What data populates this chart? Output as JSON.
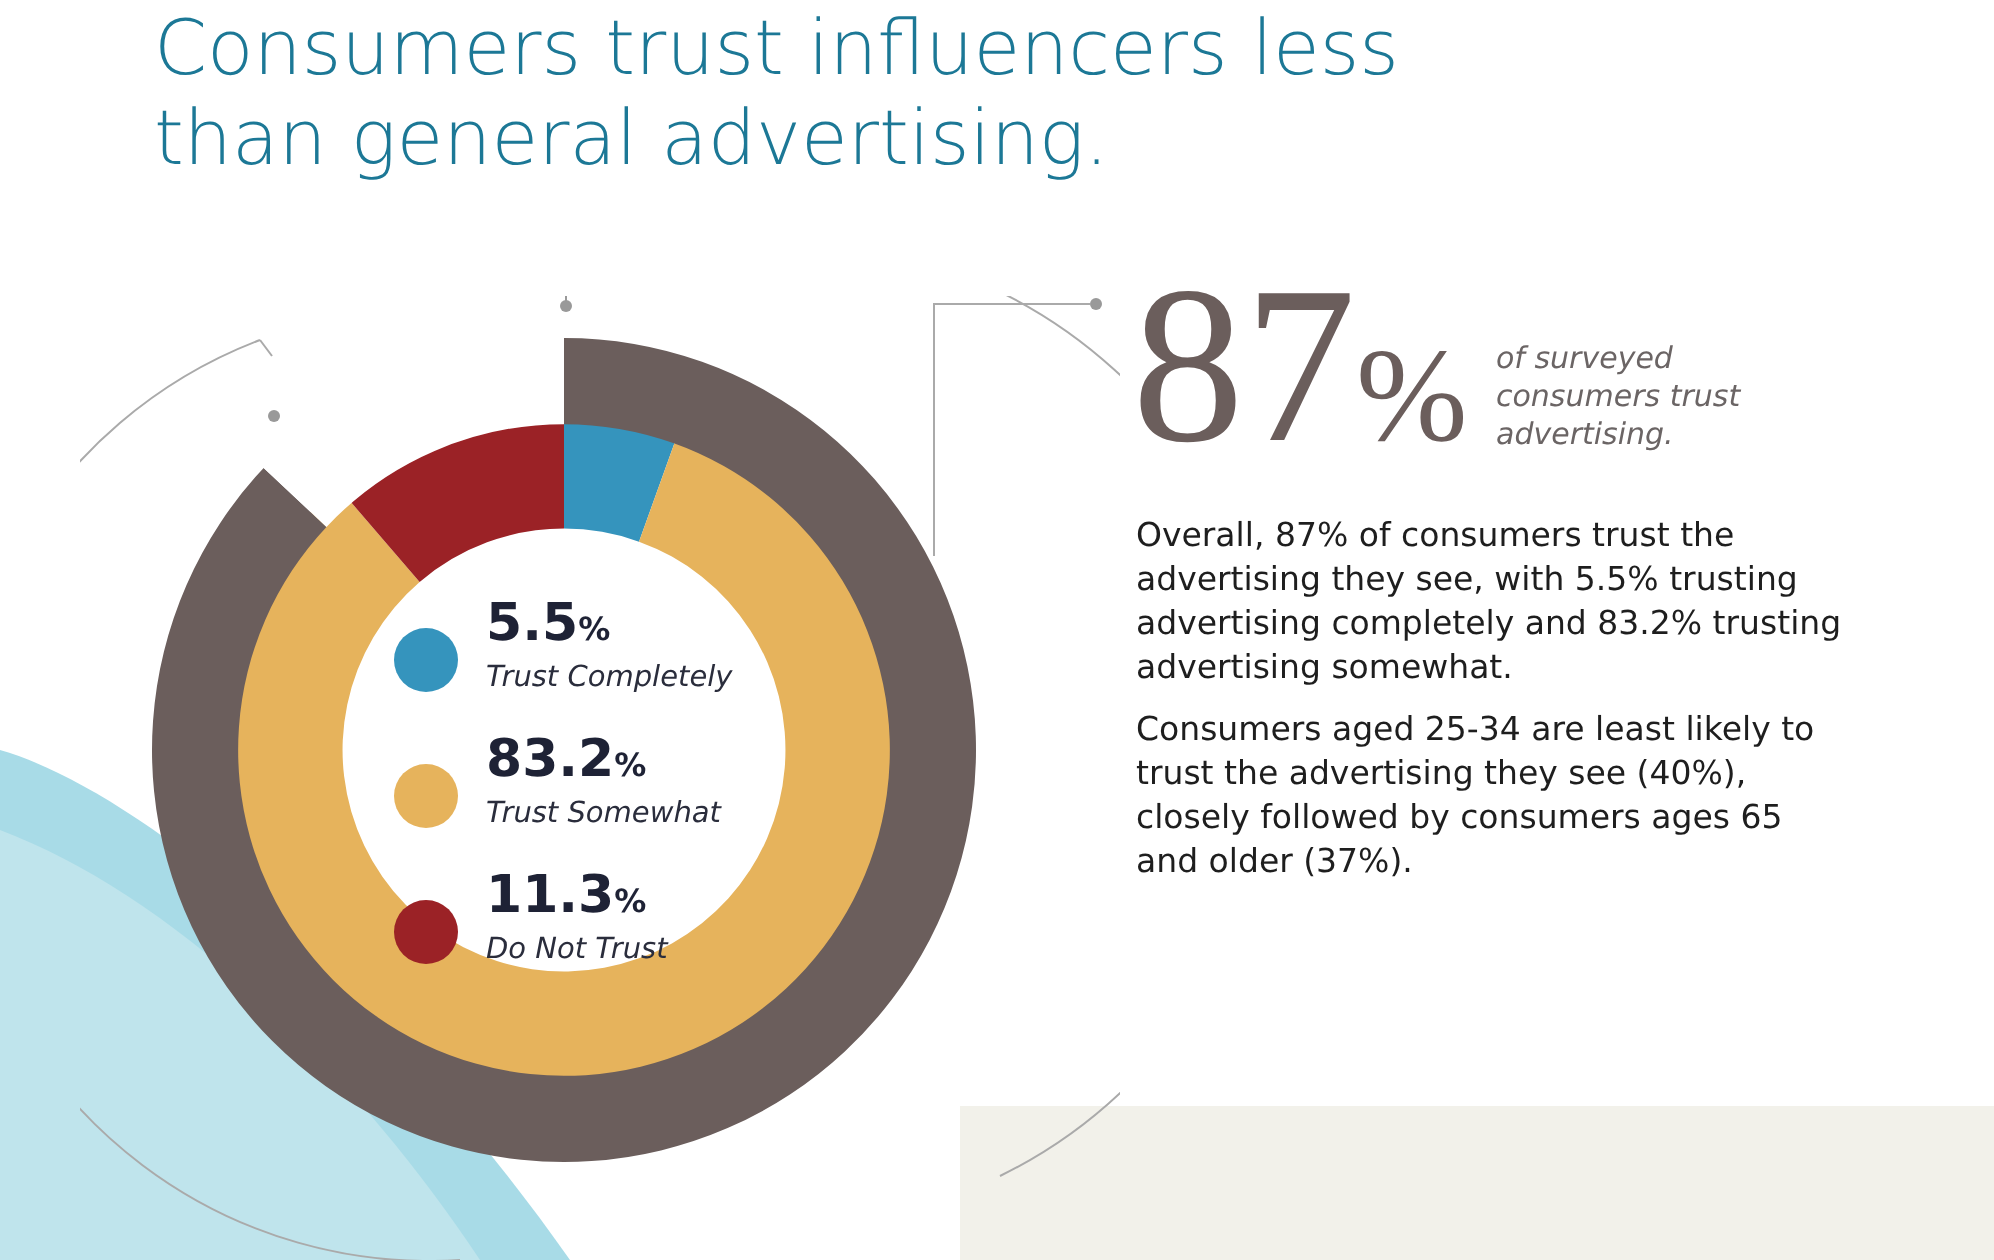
{
  "chart_data": [
    {
      "type": "donut",
      "title": "Consumers trust influencers less than general advertising.",
      "categories": [
        "Trust Completely",
        "Trust Somewhat",
        "Do Not Trust"
      ],
      "values": [
        5.5,
        83.2,
        11.3
      ],
      "colors": [
        "#3594bd",
        "#e6b35c",
        "#9b2226"
      ],
      "value_labels": [
        "5.5%",
        "83.2%",
        "11.3%"
      ],
      "legend": "center"
    },
    {
      "type": "donut",
      "categories": [
        null,
        null
      ],
      "values": [
        87,
        13
      ],
      "colors": [
        "#6b5e5c",
        "#ffffff"
      ],
      "value_labels": [
        "87%",
        null
      ],
      "annotations": [
        "of surveyed consumers trust advertising.",
        "Overall, 87% of consumers trust the advertising they see, with 5.5% trusting advertising completely and 83.2% trusting advertising somewhat.",
        "Consumers aged 25-34 are least likely to trust the advertising they see (40%), closely followed by consumers ages 65 and older (37%)."
      ]
    }
  ]
}
